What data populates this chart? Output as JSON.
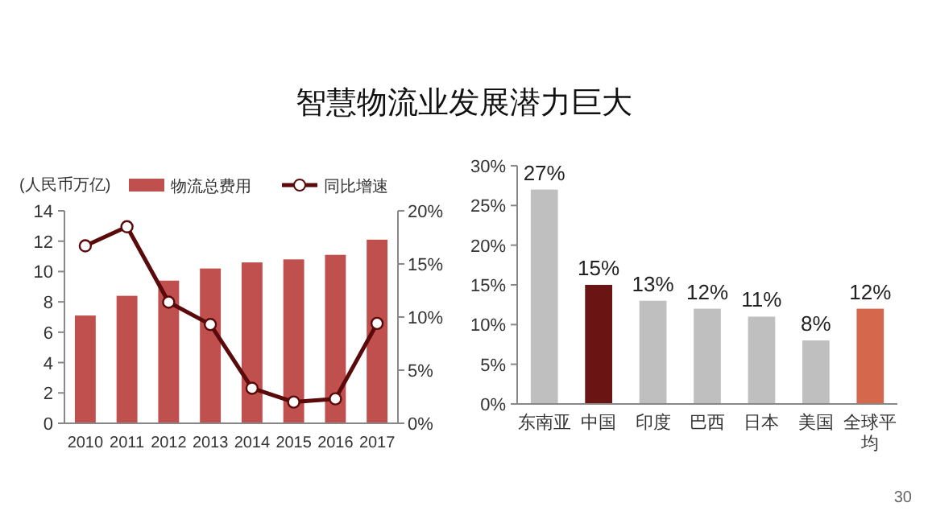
{
  "chart_data": [
    {
      "type": "bar",
      "title": "智慧物流业发展潜力巨大",
      "ylabel": "(人民币万亿)",
      "categories": [
        "2010",
        "2011",
        "2012",
        "2013",
        "2014",
        "2015",
        "2016",
        "2017"
      ],
      "series": [
        {
          "name": "物流总费用",
          "color": "#c0504d",
          "values": [
            7.1,
            8.4,
            9.4,
            10.2,
            10.6,
            10.8,
            11.1,
            12.1
          ]
        },
        {
          "name": "同比增速",
          "type": "line",
          "axis": "y2",
          "color": "#5a0a0a",
          "marker": "circle",
          "values": [
            16.7,
            18.5,
            11.4,
            9.3,
            3.3,
            2.0,
            2.3,
            9.4
          ]
        }
      ],
      "ylim": [
        0,
        14
      ],
      "yticks": [
        0,
        2,
        4,
        6,
        8,
        10,
        12,
        14
      ],
      "y2lim": [
        0,
        20
      ],
      "y2ticks": [
        {
          "value": 0,
          "label": "0%"
        },
        {
          "value": 5,
          "label": "5%"
        },
        {
          "value": 10,
          "label": "10%"
        },
        {
          "value": 15,
          "label": "15%"
        },
        {
          "value": 20,
          "label": "20%"
        }
      ],
      "legend": "top",
      "grid": false
    },
    {
      "type": "bar",
      "categories": [
        "东南亚",
        "中国",
        "印度",
        "巴西",
        "日本",
        "美国",
        "全球平均"
      ],
      "values": [
        27,
        15,
        13,
        12,
        11,
        8,
        12
      ],
      "colors": [
        "#bfbfbf",
        "#6b1414",
        "#bfbfbf",
        "#bfbfbf",
        "#bfbfbf",
        "#bfbfbf",
        "#d4674c"
      ],
      "value_labels": [
        "27%",
        "15%",
        "13%",
        "12%",
        "11%",
        "8%",
        "12%"
      ],
      "ylim": [
        0,
        30
      ],
      "yticks": [
        {
          "value": 0,
          "label": "0%"
        },
        {
          "value": 5,
          "label": "5%"
        },
        {
          "value": 10,
          "label": "10%"
        },
        {
          "value": 15,
          "label": "15%"
        },
        {
          "value": 20,
          "label": "20%"
        },
        {
          "value": 25,
          "label": "25%"
        },
        {
          "value": 30,
          "label": "30%"
        }
      ],
      "grid": false,
      "annotations": [
        {
          "text": "30"
        }
      ]
    }
  ]
}
